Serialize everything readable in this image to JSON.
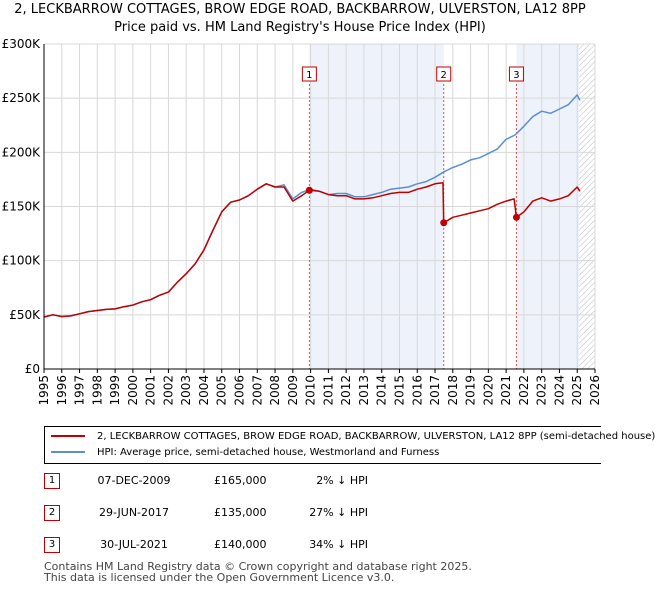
{
  "title_line1": "2, LECKBARROW COTTAGES, BROW EDGE ROAD, BACKBARROW, ULVERSTON, LA12 8PP",
  "title_line2": "Price paid vs. HM Land Registry's House Price Index (HPI)",
  "colors": {
    "property": "#c00000",
    "hpi": "#5a8fd0",
    "shade": "#eef2fb",
    "grid": "#d8d8d8",
    "marker_line": "#e05050"
  },
  "chart_data": {
    "type": "line",
    "xlim": [
      1995,
      2026
    ],
    "ylim": [
      0,
      300000
    ],
    "y_ticks": [
      0,
      50000,
      100000,
      150000,
      200000,
      250000,
      300000
    ],
    "y_tick_labels": [
      "£0",
      "£50K",
      "£100K",
      "£150K",
      "£200K",
      "£250K",
      "£300K"
    ],
    "x_ticks": [
      1995,
      1996,
      1997,
      1998,
      1999,
      2000,
      2001,
      2002,
      2003,
      2004,
      2005,
      2006,
      2007,
      2008,
      2009,
      2010,
      2011,
      2012,
      2013,
      2014,
      2015,
      2016,
      2017,
      2018,
      2019,
      2020,
      2021,
      2022,
      2023,
      2024,
      2025,
      2026
    ],
    "x_tick_labels": [
      "1995",
      "1996",
      "1997",
      "1998",
      "1999",
      "2000",
      "2001",
      "2002",
      "2003",
      "2004",
      "2005",
      "2006",
      "2007",
      "2008",
      "2009",
      "2010",
      "2011",
      "2012",
      "2013",
      "2014",
      "2015",
      "2016",
      "2017",
      "2018",
      "2019",
      "2020",
      "2021",
      "2022",
      "2023",
      "2024",
      "2025",
      "2026"
    ],
    "shaded_ranges": [
      [
        2009.93,
        2017.49
      ],
      [
        2021.58,
        2025.1
      ]
    ],
    "future_hatch_from": 2025.1,
    "series": [
      {
        "name": "HPI: Average price, semi-detached house, Westmorland and Furness",
        "points": [
          [
            1995.0,
            48000
          ],
          [
            1995.5,
            50000
          ],
          [
            1996.0,
            48500
          ],
          [
            1996.5,
            49000
          ],
          [
            1997.0,
            51000
          ],
          [
            1997.5,
            53000
          ],
          [
            1998.0,
            54000
          ],
          [
            1998.5,
            55000
          ],
          [
            1999.0,
            55500
          ],
          [
            1999.5,
            57500
          ],
          [
            2000.0,
            59000
          ],
          [
            2000.5,
            62000
          ],
          [
            2001.0,
            64000
          ],
          [
            2001.5,
            68000
          ],
          [
            2002.0,
            71000
          ],
          [
            2002.5,
            80000
          ],
          [
            2003.0,
            88000
          ],
          [
            2003.5,
            97000
          ],
          [
            2004.0,
            110000
          ],
          [
            2004.5,
            128000
          ],
          [
            2005.0,
            145000
          ],
          [
            2005.5,
            154000
          ],
          [
            2006.0,
            156000
          ],
          [
            2006.5,
            160000
          ],
          [
            2007.0,
            166000
          ],
          [
            2007.5,
            171000
          ],
          [
            2008.0,
            168000
          ],
          [
            2008.5,
            170000
          ],
          [
            2009.0,
            157000
          ],
          [
            2009.5,
            163000
          ],
          [
            2010.0,
            166000
          ],
          [
            2010.5,
            164000
          ],
          [
            2011.0,
            161000
          ],
          [
            2011.5,
            162000
          ],
          [
            2012.0,
            162000
          ],
          [
            2012.5,
            159000
          ],
          [
            2013.0,
            159000
          ],
          [
            2013.5,
            161000
          ],
          [
            2014.0,
            163000
          ],
          [
            2014.5,
            166000
          ],
          [
            2015.0,
            167000
          ],
          [
            2015.5,
            168000
          ],
          [
            2016.0,
            171000
          ],
          [
            2016.5,
            173000
          ],
          [
            2017.0,
            177000
          ],
          [
            2017.5,
            182000
          ],
          [
            2018.0,
            186000
          ],
          [
            2018.5,
            189000
          ],
          [
            2019.0,
            193000
          ],
          [
            2019.5,
            195000
          ],
          [
            2020.0,
            199000
          ],
          [
            2020.5,
            203000
          ],
          [
            2021.0,
            212000
          ],
          [
            2021.5,
            216000
          ],
          [
            2022.0,
            224000
          ],
          [
            2022.5,
            233000
          ],
          [
            2023.0,
            238000
          ],
          [
            2023.5,
            236000
          ],
          [
            2024.0,
            240000
          ],
          [
            2024.5,
            244000
          ],
          [
            2025.0,
            253000
          ],
          [
            2025.15,
            248000
          ]
        ]
      },
      {
        "name": "2, LECKBARROW COTTAGES, BROW EDGE ROAD, BACKBARROW, ULVERSTON, LA12 8PP (semi-detached house)",
        "points": [
          [
            1995.0,
            48000
          ],
          [
            1995.5,
            50000
          ],
          [
            1996.0,
            48500
          ],
          [
            1996.5,
            49000
          ],
          [
            1997.0,
            51000
          ],
          [
            1997.5,
            53000
          ],
          [
            1998.0,
            54000
          ],
          [
            1998.5,
            55000
          ],
          [
            1999.0,
            55500
          ],
          [
            1999.5,
            57500
          ],
          [
            2000.0,
            59000
          ],
          [
            2000.5,
            62000
          ],
          [
            2001.0,
            64000
          ],
          [
            2001.5,
            68000
          ],
          [
            2002.0,
            71000
          ],
          [
            2002.5,
            80000
          ],
          [
            2003.0,
            88000
          ],
          [
            2003.5,
            97000
          ],
          [
            2004.0,
            110000
          ],
          [
            2004.5,
            128000
          ],
          [
            2005.0,
            145000
          ],
          [
            2005.5,
            154000
          ],
          [
            2006.0,
            156000
          ],
          [
            2006.5,
            160000
          ],
          [
            2007.0,
            166000
          ],
          [
            2007.5,
            171000
          ],
          [
            2008.0,
            168000
          ],
          [
            2008.5,
            168000
          ],
          [
            2009.0,
            155000
          ],
          [
            2009.5,
            160000
          ],
          [
            2009.93,
            165000
          ],
          [
            2010.5,
            164000
          ],
          [
            2011.0,
            161000
          ],
          [
            2011.5,
            160000
          ],
          [
            2012.0,
            160000
          ],
          [
            2012.5,
            157000
          ],
          [
            2013.0,
            157000
          ],
          [
            2013.5,
            158000
          ],
          [
            2014.0,
            160000
          ],
          [
            2014.5,
            162000
          ],
          [
            2015.0,
            163000
          ],
          [
            2015.5,
            163000
          ],
          [
            2016.0,
            166000
          ],
          [
            2016.5,
            168000
          ],
          [
            2017.0,
            171000
          ],
          [
            2017.45,
            172000
          ],
          [
            2017.49,
            135000
          ],
          [
            2018.0,
            140000
          ],
          [
            2018.5,
            142000
          ],
          [
            2019.0,
            144000
          ],
          [
            2019.5,
            146000
          ],
          [
            2020.0,
            148000
          ],
          [
            2020.5,
            152000
          ],
          [
            2021.0,
            155000
          ],
          [
            2021.45,
            157000
          ],
          [
            2021.58,
            140000
          ],
          [
            2022.0,
            145000
          ],
          [
            2022.5,
            155000
          ],
          [
            2023.0,
            158000
          ],
          [
            2023.5,
            155000
          ],
          [
            2024.0,
            157000
          ],
          [
            2024.5,
            160000
          ],
          [
            2025.0,
            168000
          ],
          [
            2025.15,
            164000
          ]
        ]
      }
    ],
    "sales": [
      {
        "label": "1",
        "x": 2009.93,
        "y": 165000
      },
      {
        "label": "2",
        "x": 2017.49,
        "y": 135000
      },
      {
        "label": "3",
        "x": 2021.58,
        "y": 140000
      }
    ]
  },
  "legend": {
    "property_label": "2, LECKBARROW COTTAGES, BROW EDGE ROAD, BACKBARROW, ULVERSTON, LA12 8PP (semi-detached house)",
    "hpi_label": "HPI: Average price, semi-detached house, Westmorland and Furness"
  },
  "sales_table": [
    {
      "num": "1",
      "date": "07-DEC-2009",
      "price": "£165,000",
      "hpi": "2% ↓ HPI"
    },
    {
      "num": "2",
      "date": "29-JUN-2017",
      "price": "£135,000",
      "hpi": "27% ↓ HPI"
    },
    {
      "num": "3",
      "date": "30-JUL-2021",
      "price": "£140,000",
      "hpi": "34% ↓ HPI"
    }
  ],
  "footer_line1": "Contains HM Land Registry data © Crown copyright and database right 2025.",
  "footer_line2": "This data is licensed under the Open Government Licence v3.0."
}
